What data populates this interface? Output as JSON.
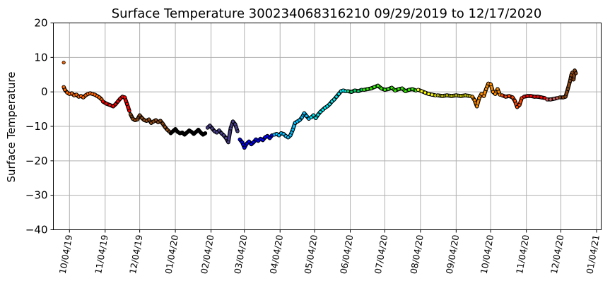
{
  "chart_data": {
    "type": "scatter",
    "title": "Surface Temperature 300234068316210  09/29/2019 to 12/17/2020",
    "xlabel": "",
    "ylabel": "Surface Temperature",
    "ylim": [
      -40,
      20
    ],
    "xlim": [
      "2019-09-20",
      "2021-01-08"
    ],
    "yticks": [
      20,
      10,
      0,
      -10,
      -20,
      -30,
      -40
    ],
    "ytick_labels": [
      "20",
      "10",
      "0",
      "−10",
      "−20",
      "−30",
      "−40"
    ],
    "xticks": [
      "2019-10-04",
      "2019-11-04",
      "2019-12-04",
      "2020-01-04",
      "2020-02-04",
      "2020-03-04",
      "2020-04-04",
      "2020-05-04",
      "2020-06-04",
      "2020-07-04",
      "2020-08-04",
      "2020-09-04",
      "2020-10-04",
      "2020-11-04",
      "2020-12-04",
      "2021-01-04"
    ],
    "xtick_labels": [
      "10/04/19",
      "11/04/19",
      "12/04/19",
      "01/04/20",
      "02/04/20",
      "03/04/20",
      "04/04/20",
      "05/04/20",
      "06/04/20",
      "07/04/20",
      "08/04/20",
      "09/04/20",
      "10/04/20",
      "11/04/20",
      "12/04/20",
      "01/04/21"
    ],
    "grid": true,
    "marker_edge_color": "#000000",
    "series": [
      {
        "color": "#ff6600",
        "x": [
          "2019-09-29",
          "2019-09-29",
          "2019-09-30",
          "2019-10-02",
          "2019-10-04",
          "2019-10-06",
          "2019-10-08",
          "2019-10-10",
          "2019-10-12",
          "2019-10-14",
          "2019-10-16",
          "2019-10-18",
          "2019-10-20",
          "2019-10-22",
          "2019-10-24",
          "2019-10-26",
          "2019-10-28",
          "2019-10-30",
          "2019-11-01"
        ],
        "y": [
          8.5,
          1.4,
          0.6,
          -0.2,
          -0.6,
          -0.4,
          -1.0,
          -0.8,
          -1.4,
          -1.2,
          -1.6,
          -1.0,
          -0.6,
          -0.4,
          -0.6,
          -0.8,
          -1.2,
          -1.6,
          -2.2
        ]
      },
      {
        "color": "#ff0000",
        "x": [
          "2019-11-02",
          "2019-11-05",
          "2019-11-08",
          "2019-11-11",
          "2019-11-13",
          "2019-11-15",
          "2019-11-17",
          "2019-11-19",
          "2019-11-21",
          "2019-11-23",
          "2019-11-25"
        ],
        "y": [
          -2.8,
          -3.4,
          -3.8,
          -4.2,
          -3.6,
          -2.8,
          -2.0,
          -1.4,
          -1.6,
          -3.5,
          -5.5
        ]
      },
      {
        "color": "#8b4513",
        "x": [
          "2019-11-26",
          "2019-11-28",
          "2019-11-30",
          "2019-12-02",
          "2019-12-04",
          "2019-12-06",
          "2019-12-08",
          "2019-12-10",
          "2019-12-12",
          "2019-12-14",
          "2019-12-16",
          "2019-12-18",
          "2019-12-20",
          "2019-12-22",
          "2019-12-24",
          "2019-12-26",
          "2019-12-28",
          "2019-12-30"
        ],
        "y": [
          -6.5,
          -7.8,
          -8.2,
          -8.0,
          -6.8,
          -7.6,
          -8.2,
          -8.4,
          -8.0,
          -9.0,
          -8.6,
          -8.2,
          -8.8,
          -8.4,
          -9.2,
          -10.2,
          -11.0,
          -11.6
        ]
      },
      {
        "color": "#000000",
        "x": [
          "2019-12-31",
          "2020-01-02",
          "2020-01-04",
          "2020-01-06",
          "2020-01-08",
          "2020-01-10",
          "2020-01-12",
          "2020-01-14",
          "2020-01-16",
          "2020-01-18",
          "2020-01-20",
          "2020-01-22",
          "2020-01-24",
          "2020-01-26",
          "2020-01-28",
          "2020-01-30"
        ],
        "y": [
          -12.0,
          -11.4,
          -10.8,
          -11.6,
          -12.0,
          -11.8,
          -12.4,
          -11.8,
          -11.2,
          -11.6,
          -12.2,
          -11.6,
          -11.0,
          -11.8,
          -12.4,
          -12.0
        ]
      },
      {
        "color": "#483d8b",
        "x": [
          "2020-02-01",
          "2020-02-03",
          "2020-02-05",
          "2020-02-07",
          "2020-02-09",
          "2020-02-11",
          "2020-02-13",
          "2020-02-15",
          "2020-02-17",
          "2020-02-19",
          "2020-02-21",
          "2020-02-23",
          "2020-02-25",
          "2020-02-27"
        ],
        "y": [
          -10.4,
          -9.8,
          -10.6,
          -11.4,
          -11.8,
          -11.2,
          -12.0,
          -12.6,
          -13.4,
          -14.6,
          -10.6,
          -8.6,
          -9.4,
          -11.4
        ]
      },
      {
        "color": "#0000ff",
        "x": [
          "2020-02-29",
          "2020-03-02",
          "2020-03-04",
          "2020-03-06",
          "2020-03-08",
          "2020-03-10",
          "2020-03-12",
          "2020-03-14",
          "2020-03-16",
          "2020-03-18",
          "2020-03-20",
          "2020-03-22",
          "2020-03-24",
          "2020-03-26",
          "2020-03-28"
        ],
        "y": [
          -13.8,
          -14.6,
          -16.2,
          -15.0,
          -14.4,
          -15.2,
          -14.6,
          -13.8,
          -14.2,
          -13.6,
          -14.0,
          -13.2,
          -12.8,
          -13.4,
          -12.6
        ]
      },
      {
        "color": "#00bfff",
        "x": [
          "2020-03-30",
          "2020-04-01",
          "2020-04-03",
          "2020-04-05",
          "2020-04-07",
          "2020-04-09",
          "2020-04-11",
          "2020-04-13",
          "2020-04-15",
          "2020-04-17",
          "2020-04-19",
          "2020-04-21",
          "2020-04-23",
          "2020-04-25",
          "2020-04-27",
          "2020-04-29"
        ],
        "y": [
          -12.4,
          -12.2,
          -12.6,
          -12.0,
          -12.2,
          -12.8,
          -13.2,
          -12.6,
          -11.0,
          -9.0,
          -8.6,
          -8.2,
          -7.4,
          -6.2,
          -7.0,
          -7.8
        ]
      },
      {
        "color": "#00e5ee",
        "x": [
          "2020-05-01",
          "2020-05-03",
          "2020-05-05",
          "2020-05-07",
          "2020-05-09",
          "2020-05-11",
          "2020-05-13",
          "2020-05-15",
          "2020-05-17",
          "2020-05-19",
          "2020-05-21",
          "2020-05-23",
          "2020-05-25",
          "2020-05-27",
          "2020-05-29",
          "2020-05-31"
        ],
        "y": [
          -7.4,
          -6.8,
          -7.6,
          -6.6,
          -5.8,
          -5.2,
          -4.6,
          -4.2,
          -3.6,
          -2.8,
          -2.2,
          -1.4,
          -0.6,
          0.2,
          0.4,
          0.2
        ]
      },
      {
        "color": "#00cc66",
        "x": [
          "2020-06-02",
          "2020-06-05",
          "2020-06-08",
          "2020-06-11",
          "2020-06-14"
        ],
        "y": [
          0.2,
          0.0,
          0.4,
          0.2,
          0.6
        ]
      },
      {
        "color": "#33ee00",
        "x": [
          "2020-06-16",
          "2020-06-19",
          "2020-06-22",
          "2020-06-25",
          "2020-06-28",
          "2020-07-01",
          "2020-07-04",
          "2020-07-07",
          "2020-07-10",
          "2020-07-13",
          "2020-07-16",
          "2020-07-19",
          "2020-07-22",
          "2020-07-25",
          "2020-07-28",
          "2020-07-31"
        ],
        "y": [
          0.6,
          0.8,
          1.0,
          1.4,
          1.8,
          1.0,
          0.6,
          0.8,
          1.2,
          0.4,
          0.8,
          1.0,
          0.2,
          0.6,
          0.8,
          0.4
        ]
      },
      {
        "color": "#ffff00",
        "x": [
          "2020-08-02",
          "2020-08-05",
          "2020-08-08",
          "2020-08-11",
          "2020-08-14",
          "2020-08-17"
        ],
        "y": [
          0.6,
          0.2,
          -0.2,
          -0.6,
          -0.8,
          -1.0
        ]
      },
      {
        "color": "#b5b500",
        "x": [
          "2020-08-19",
          "2020-08-23",
          "2020-08-27",
          "2020-08-31",
          "2020-09-04",
          "2020-09-08",
          "2020-09-12",
          "2020-09-16"
        ],
        "y": [
          -1.0,
          -1.2,
          -1.0,
          -1.2,
          -1.0,
          -1.2,
          -1.0,
          -1.2
        ]
      },
      {
        "color": "#ff8c00",
        "x": [
          "2020-09-18",
          "2020-09-20",
          "2020-09-22",
          "2020-09-24",
          "2020-09-26",
          "2020-09-28",
          "2020-09-30",
          "2020-10-02",
          "2020-10-04",
          "2020-10-06",
          "2020-10-08",
          "2020-10-10",
          "2020-10-12"
        ],
        "y": [
          -1.4,
          -2.4,
          -4.2,
          -1.8,
          -0.6,
          -1.2,
          0.8,
          2.4,
          2.2,
          0.0,
          -0.6,
          0.8,
          -0.8
        ]
      },
      {
        "color": "#ff4500",
        "x": [
          "2020-10-14",
          "2020-10-17",
          "2020-10-20",
          "2020-10-23",
          "2020-10-25",
          "2020-10-27",
          "2020-10-29",
          "2020-10-31"
        ],
        "y": [
          -1.0,
          -1.4,
          -1.2,
          -1.6,
          -2.6,
          -4.4,
          -3.8,
          -1.8
        ]
      },
      {
        "color": "#ff0000",
        "x": [
          "2020-11-02",
          "2020-11-05",
          "2020-11-08",
          "2020-11-11",
          "2020-11-14",
          "2020-11-17",
          "2020-11-20"
        ],
        "y": [
          -1.4,
          -1.2,
          -1.2,
          -1.4,
          -1.4,
          -1.6,
          -1.8
        ]
      },
      {
        "color": "#cd5c5c",
        "x": [
          "2020-11-22",
          "2020-11-25",
          "2020-11-28",
          "2020-12-01"
        ],
        "y": [
          -2.2,
          -2.2,
          -2.0,
          -1.8
        ]
      },
      {
        "color": "#8b4513",
        "x": [
          "2020-12-03",
          "2020-12-06",
          "2020-12-08",
          "2020-12-10",
          "2020-12-12",
          "2020-12-13",
          "2020-12-14",
          "2020-12-15",
          "2020-12-16",
          "2020-12-17"
        ],
        "y": [
          -1.6,
          -1.6,
          -1.4,
          0.8,
          3.2,
          4.8,
          5.6,
          3.6,
          6.2,
          5.4
        ]
      }
    ]
  }
}
